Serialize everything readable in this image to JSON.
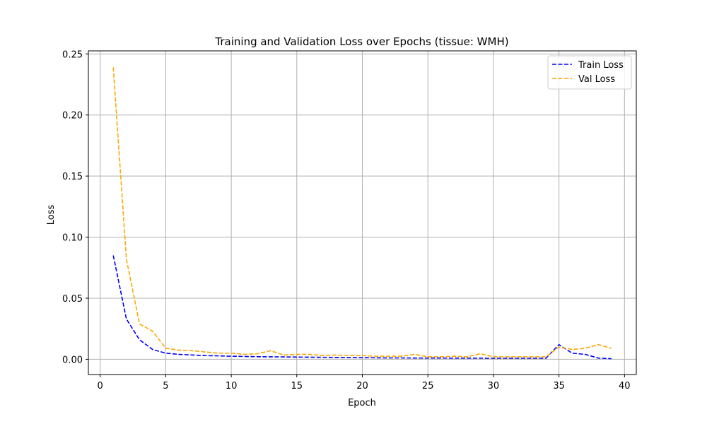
{
  "chart_data": {
    "type": "line",
    "title": "Training and Validation Loss over Epochs (tissue: WMH)",
    "xlabel": "Epoch",
    "ylabel": "Loss",
    "xlim": [
      -0.9,
      40.9
    ],
    "ylim": [
      -0.0125,
      0.2525
    ],
    "xticks": [
      0,
      5,
      10,
      15,
      20,
      25,
      30,
      35,
      40
    ],
    "yticks": [
      0.0,
      0.05,
      0.1,
      0.15,
      0.2,
      0.25
    ],
    "xtick_labels": [
      "0",
      "5",
      "10",
      "15",
      "20",
      "25",
      "30",
      "35",
      "40"
    ],
    "ytick_labels": [
      "0.00",
      "0.05",
      "0.10",
      "0.15",
      "0.20",
      "0.25"
    ],
    "grid": true,
    "legend_position": "top-right",
    "x": [
      1,
      2,
      3,
      4,
      5,
      6,
      7,
      8,
      9,
      10,
      11,
      12,
      13,
      14,
      15,
      16,
      17,
      18,
      19,
      20,
      21,
      22,
      23,
      24,
      25,
      26,
      27,
      28,
      29,
      30,
      31,
      32,
      33,
      34,
      35,
      36,
      37,
      38,
      39
    ],
    "series": [
      {
        "name": "Train Loss",
        "color": "#0000ff",
        "style": "dashed",
        "values": [
          0.085,
          0.033,
          0.016,
          0.008,
          0.005,
          0.004,
          0.0035,
          0.003,
          0.0028,
          0.0025,
          0.0023,
          0.0021,
          0.002,
          0.0019,
          0.0018,
          0.0017,
          0.0016,
          0.0015,
          0.0014,
          0.0013,
          0.0012,
          0.0011,
          0.0011,
          0.001,
          0.001,
          0.001,
          0.0009,
          0.0009,
          0.0009,
          0.0008,
          0.0008,
          0.0008,
          0.0008,
          0.0008,
          0.012,
          0.005,
          0.004,
          0.001,
          0.0005
        ]
      },
      {
        "name": "Val Loss",
        "color": "#ffa500",
        "style": "dashed",
        "values": [
          0.239,
          0.082,
          0.029,
          0.023,
          0.009,
          0.0075,
          0.007,
          0.006,
          0.005,
          0.005,
          0.004,
          0.0045,
          0.007,
          0.0035,
          0.004,
          0.004,
          0.003,
          0.0035,
          0.003,
          0.003,
          0.0025,
          0.0025,
          0.0025,
          0.004,
          0.002,
          0.002,
          0.0025,
          0.002,
          0.0045,
          0.002,
          0.002,
          0.002,
          0.002,
          0.002,
          0.01,
          0.008,
          0.009,
          0.012,
          0.009
        ]
      }
    ]
  }
}
